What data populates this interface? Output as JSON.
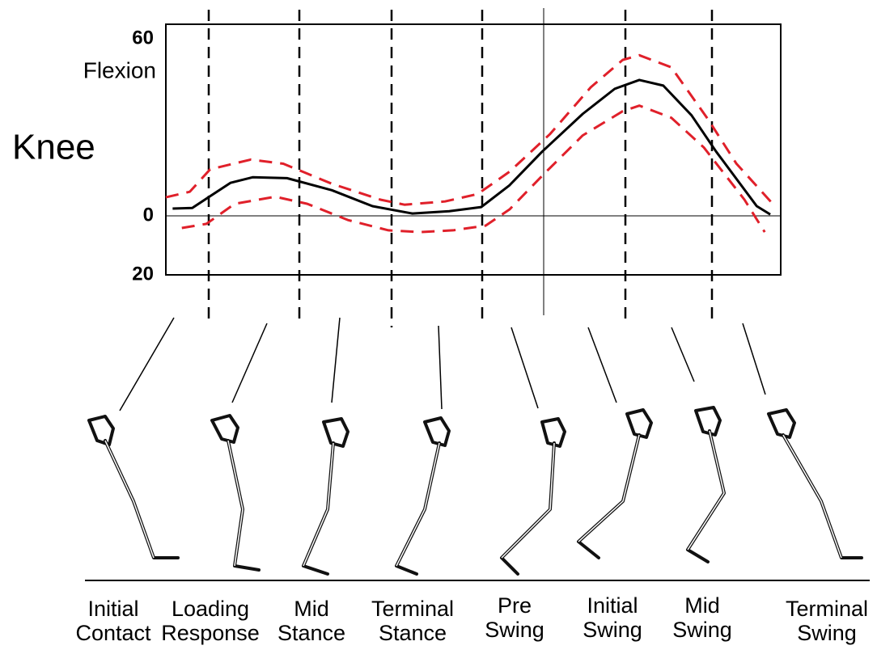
{
  "chart_data": {
    "type": "line",
    "title": "Knee",
    "y_label": "Flexion",
    "xlim": [
      0,
      100
    ],
    "ylim": [
      -20,
      65
    ],
    "yticks": [
      60,
      0,
      {
        "value": -20,
        "label": "20"
      }
    ],
    "series": [
      {
        "color": "#000000",
        "dash": false,
        "x": [
          1.1,
          4.3,
          10.5,
          14.1,
          19.7,
          27.0,
          33.6,
          40.1,
          46.1,
          51.3,
          55.9,
          61.2,
          67.8,
          73.0,
          77.0,
          80.9,
          85.5,
          89.5,
          96.1,
          98.3
        ],
        "values": [
          2.5,
          2.7,
          11.2,
          13.1,
          12.8,
          8.7,
          3.3,
          0.8,
          1.6,
          3.0,
          10.4,
          21.8,
          34.6,
          43.1,
          46.1,
          44.2,
          34.1,
          21.8,
          3.3,
          0.5
        ]
      },
      {
        "color": "#e0202a",
        "dash": true,
        "x": [
          0,
          3.9,
          7.2,
          13.8,
          19.1,
          27.0,
          34.9,
          38.8,
          45.4,
          50.7,
          55.9,
          62.5,
          69.1,
          74.3,
          77.0,
          82.2,
          88.2,
          92.8,
          98.7
        ],
        "values": [
          6.3,
          8.2,
          15.8,
          19.1,
          17.7,
          10.9,
          5.5,
          3.8,
          4.9,
          7.4,
          15.0,
          27.8,
          43.6,
          52.9,
          54.5,
          50.4,
          32.7,
          17.7,
          4.1
        ]
      },
      {
        "color": "#e0202a",
        "dash": true,
        "x": [
          2.6,
          6.6,
          11.2,
          17.8,
          23.0,
          29.6,
          36.2,
          41.4,
          46.7,
          52.0,
          55.9,
          61.2,
          67.8,
          74.3,
          77.0,
          82.2,
          87.5,
          94.1,
          97.4
        ],
        "values": [
          -4.1,
          -2.7,
          4.1,
          6.5,
          4.1,
          -1.4,
          -4.9,
          -5.5,
          -4.9,
          -3.3,
          2.2,
          13.6,
          27.3,
          35.5,
          37.4,
          33.3,
          23.2,
          5.5,
          -5.5
        ]
      }
    ],
    "phases": [
      [
        "Initial",
        "Contact"
      ],
      [
        "Loading",
        "Response"
      ],
      [
        "Mid",
        "Stance"
      ],
      [
        "Terminal",
        "Stance"
      ],
      [
        "Pre",
        "Swing"
      ],
      [
        "Initial",
        "Swing"
      ],
      [
        "Mid",
        "Swing"
      ],
      [
        "Terminal",
        "Swing"
      ]
    ]
  }
}
